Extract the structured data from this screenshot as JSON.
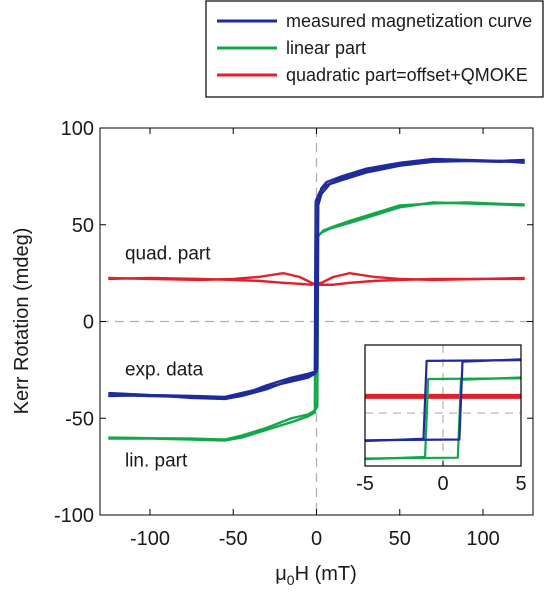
{
  "chart_data": {
    "type": "line",
    "xlabel": {
      "base": "μ",
      "sub": "0",
      "rest": "H (mT)"
    },
    "ylabel": "Kerr Rotation (mdeg)",
    "xlim": [
      -130,
      130
    ],
    "ylim": [
      -100,
      100
    ],
    "xticks": [
      "-100",
      "-50",
      "0",
      "50",
      "100"
    ],
    "yticks": [
      "100",
      "50",
      "0",
      "-50",
      "-100"
    ],
    "grid": false,
    "legend_position": "top",
    "colors": {
      "measured": "#1f2a9c",
      "linear": "#12a84a",
      "quadratic": "#e0202a",
      "dashed": "#b0b0b0"
    },
    "series": [
      {
        "name": "measured magnetization curve",
        "color": "#1f2a9c",
        "branches": [
          [
            [
              -125,
              -38
            ],
            [
              -100,
              -38.5
            ],
            [
              -75,
              -39
            ],
            [
              -55,
              -40
            ],
            [
              -45,
              -38
            ],
            [
              -30,
              -33
            ],
            [
              -15,
              -29
            ],
            [
              -5,
              -27
            ],
            [
              -1,
              -26
            ],
            [
              -0.5,
              62
            ],
            [
              2,
              67
            ],
            [
              5,
              70
            ],
            [
              15,
              74
            ],
            [
              30,
              78
            ],
            [
              50,
              81
            ],
            [
              70,
              83
            ],
            [
              90,
              83
            ],
            [
              110,
              83
            ],
            [
              125,
              82
            ]
          ],
          [
            [
              -125,
              -37
            ],
            [
              -100,
              -38
            ],
            [
              -75,
              -38.5
            ],
            [
              -55,
              -39
            ],
            [
              -45,
              -37
            ],
            [
              -30,
              -34
            ],
            [
              -15,
              -31
            ],
            [
              -5,
              -29
            ],
            [
              -1,
              -27
            ],
            [
              0.5,
              -24
            ],
            [
              1,
              64
            ],
            [
              3,
              69
            ],
            [
              6,
              72
            ],
            [
              15,
              75
            ],
            [
              30,
              79
            ],
            [
              50,
              82
            ],
            [
              70,
              84
            ],
            [
              90,
              83.5
            ],
            [
              110,
              83
            ],
            [
              125,
              83.5
            ]
          ],
          [
            [
              -125,
              -38.5
            ],
            [
              -100,
              -38
            ],
            [
              -75,
              -39.5
            ],
            [
              -55,
              -40
            ],
            [
              -45,
              -38.5
            ],
            [
              -30,
              -35
            ],
            [
              -15,
              -30
            ],
            [
              -5,
              -28
            ],
            [
              0,
              -26
            ],
            [
              1,
              60
            ],
            [
              3,
              66
            ],
            [
              8,
              71
            ],
            [
              15,
              73
            ],
            [
              30,
              77
            ],
            [
              50,
              80.5
            ],
            [
              70,
              82.5
            ],
            [
              90,
              83
            ],
            [
              110,
              82.5
            ],
            [
              125,
              83
            ]
          ]
        ]
      },
      {
        "name": "linear part",
        "color": "#12a84a",
        "branches": [
          [
            [
              -125,
              -60.5
            ],
            [
              -100,
              -60.5
            ],
            [
              -75,
              -61
            ],
            [
              -55,
              -61.5
            ],
            [
              -45,
              -60
            ],
            [
              -30,
              -56
            ],
            [
              -15,
              -52
            ],
            [
              -5,
              -49
            ],
            [
              -1,
              -47
            ],
            [
              -0.5,
              43
            ],
            [
              3,
              46
            ],
            [
              8,
              48
            ],
            [
              20,
              51
            ],
            [
              35,
              55
            ],
            [
              50,
              59
            ],
            [
              70,
              61.5
            ],
            [
              90,
              61
            ],
            [
              110,
              60.5
            ],
            [
              125,
              60
            ]
          ],
          [
            [
              -125,
              -60
            ],
            [
              -100,
              -60.3
            ],
            [
              -75,
              -60.5
            ],
            [
              -55,
              -61
            ],
            [
              -45,
              -59
            ],
            [
              -30,
              -55
            ],
            [
              -15,
              -50
            ],
            [
              -5,
              -48
            ],
            [
              -1,
              -46
            ],
            [
              0.5,
              -44
            ],
            [
              1,
              44
            ],
            [
              4,
              47
            ],
            [
              10,
              49
            ],
            [
              20,
              52
            ],
            [
              35,
              56
            ],
            [
              50,
              60
            ],
            [
              70,
              61
            ],
            [
              90,
              61.5
            ],
            [
              110,
              60.8
            ],
            [
              125,
              60.5
            ]
          ]
        ]
      },
      {
        "name": "quadratic part=offset+QMOKE",
        "color": "#e0202a",
        "branches": [
          [
            [
              -125,
              22.5
            ],
            [
              -100,
              22
            ],
            [
              -70,
              21.5
            ],
            [
              -50,
              22
            ],
            [
              -35,
              23
            ],
            [
              -20,
              25
            ],
            [
              -10,
              23
            ],
            [
              -3,
              20
            ],
            [
              0,
              19
            ],
            [
              3,
              19
            ],
            [
              10,
              19
            ],
            [
              20,
              20
            ],
            [
              35,
              21
            ],
            [
              50,
              21.5
            ],
            [
              70,
              22
            ],
            [
              100,
              22
            ],
            [
              125,
              22.5
            ]
          ],
          [
            [
              -125,
              22
            ],
            [
              -100,
              22.5
            ],
            [
              -70,
              22
            ],
            [
              -50,
              21.5
            ],
            [
              -35,
              21
            ],
            [
              -20,
              20
            ],
            [
              -10,
              19.5
            ],
            [
              -3,
              19
            ],
            [
              0,
              19.5
            ],
            [
              3,
              20
            ],
            [
              10,
              23
            ],
            [
              20,
              25
            ],
            [
              35,
              23
            ],
            [
              50,
              22
            ],
            [
              70,
              21.5
            ],
            [
              100,
              22
            ],
            [
              125,
              22
            ]
          ]
        ]
      }
    ],
    "annotations": [
      {
        "text": "quad. part",
        "x": -115,
        "y": 32
      },
      {
        "text": "exp. data",
        "x": -115,
        "y": -28
      },
      {
        "text": "lin. part",
        "x": -115,
        "y": -75
      }
    ],
    "inset": {
      "xlim": [
        -5,
        5
      ],
      "xticks": [
        "-5",
        "0",
        "5"
      ],
      "series": [
        {
          "name": "measured",
          "color": "#1f2a9c",
          "y_low": -36,
          "y_high": 70,
          "coercive": [
            -1.1,
            1.1
          ]
        },
        {
          "name": "linear",
          "color": "#12a84a",
          "y_low": -60,
          "y_high": 46,
          "coercive": [
            -1.0,
            1.0
          ]
        },
        {
          "name": "quadratic",
          "color": "#e0202a",
          "y_level": 22
        }
      ]
    }
  }
}
